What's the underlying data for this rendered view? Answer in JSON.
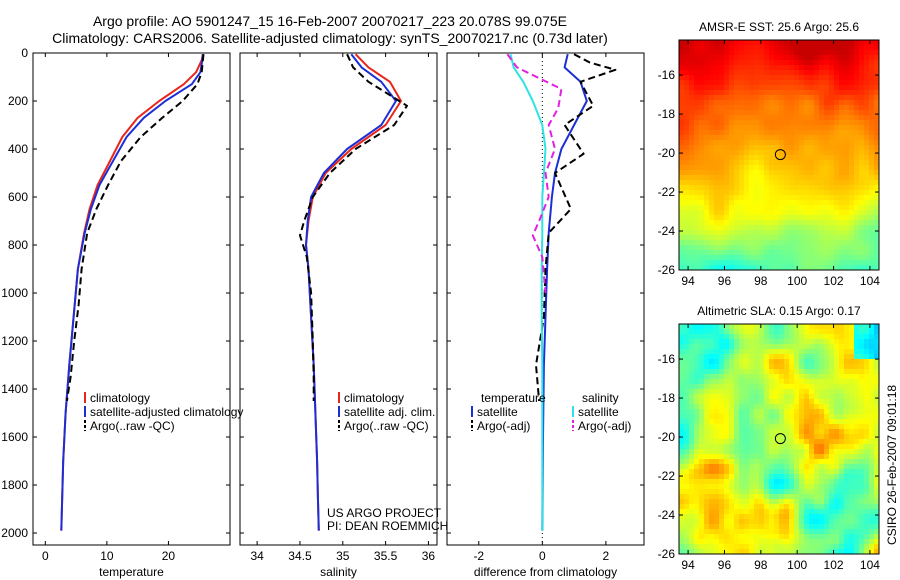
{
  "title_line1": "Argo profile: AO 5901247_15 16-Feb-2007 20070217_223 20.078S 99.075E",
  "title_line2": "Climatology: CARS2006. Satellite-adjusted climatology: synTS_20070217.nc (0.73d later)",
  "credit_project": "US ARGO PROJECT",
  "credit_pi": "PI: DEAN ROEMMICH",
  "timestamp": "CSIRO 26-Feb-2007 09:01:18",
  "colors": {
    "climatology": "#e8261c",
    "satellite": "#1c2fd6",
    "argo": "#000000",
    "sat_diff_salinity": "#2ee3e3",
    "argo_diff_salinity": "#e022e0"
  },
  "chart_data": [
    {
      "type": "line",
      "name": "temperature-profile",
      "xlabel": "temperature",
      "ylabel": "",
      "xlim": [
        -2,
        30
      ],
      "ylim": [
        2050,
        0
      ],
      "xticks": [
        0,
        10,
        20
      ],
      "yticks": [
        0,
        200,
        400,
        600,
        800,
        1000,
        1200,
        1400,
        1600,
        1800,
        2000
      ],
      "legend": [
        "climatology",
        "satellite-adjusted climatology",
        "Argo(..raw -QC)"
      ],
      "series": [
        {
          "name": "climatology",
          "style": "solid",
          "color": "#e8261c",
          "x": [
            25.6,
            25.4,
            24.5,
            22.5,
            18.5,
            15.0,
            12.5,
            10.5,
            8.5,
            7.2,
            6.3,
            5.3,
            4.6,
            3.9,
            3.3,
            2.9,
            2.6
          ],
          "y": [
            5,
            30,
            80,
            130,
            200,
            270,
            350,
            450,
            550,
            650,
            750,
            900,
            1100,
            1300,
            1500,
            1700,
            1990
          ]
        },
        {
          "name": "satellite-adjusted climatology",
          "style": "solid",
          "color": "#1c2fd6",
          "x": [
            25.6,
            25.5,
            25.2,
            23.8,
            19.5,
            16.0,
            13.2,
            11.0,
            8.8,
            7.4,
            6.4,
            5.3,
            4.6,
            3.9,
            3.3,
            2.9,
            2.6
          ],
          "y": [
            5,
            30,
            80,
            130,
            200,
            270,
            350,
            450,
            550,
            650,
            750,
            900,
            1100,
            1300,
            1500,
            1700,
            1990
          ]
        },
        {
          "name": "Argo(..raw -QC)",
          "style": "dashed",
          "color": "#000000",
          "x": [
            25.7,
            25.6,
            25.4,
            24.7,
            22.3,
            19.0,
            15.5,
            12.3,
            10.2,
            8.3,
            6.8,
            5.9,
            5.4,
            4.7,
            4.1,
            3.5
          ],
          "y": [
            5,
            30,
            80,
            130,
            200,
            270,
            350,
            450,
            550,
            650,
            750,
            900,
            1050,
            1200,
            1350,
            1450
          ]
        }
      ]
    },
    {
      "type": "line",
      "name": "salinity-profile",
      "xlabel": "salinity",
      "ylabel": "",
      "xlim": [
        33.8,
        36.1
      ],
      "ylim": [
        2050,
        0
      ],
      "xticks": [
        34,
        34.5,
        35,
        35.5,
        36
      ],
      "yticks": [],
      "legend": [
        "climatology",
        "satellite adj. clim.",
        "Argo(..raw -QC)"
      ],
      "series": [
        {
          "name": "climatology",
          "style": "solid",
          "color": "#e8261c",
          "x": [
            35.15,
            35.3,
            35.55,
            35.68,
            35.5,
            35.1,
            34.8,
            34.65,
            34.6,
            34.57,
            34.6,
            34.63,
            34.66,
            34.68,
            34.7,
            34.71,
            34.72
          ],
          "y": [
            5,
            60,
            120,
            200,
            300,
            400,
            500,
            600,
            700,
            800,
            900,
            1100,
            1300,
            1500,
            1700,
            1850,
            1990
          ]
        },
        {
          "name": "satellite adj. clim.",
          "style": "solid",
          "color": "#1c2fd6",
          "x": [
            35.1,
            35.22,
            35.45,
            35.62,
            35.45,
            35.05,
            34.78,
            34.63,
            34.59,
            34.57,
            34.6,
            34.63,
            34.66,
            34.68,
            34.7,
            34.71,
            34.72
          ],
          "y": [
            5,
            60,
            120,
            200,
            300,
            400,
            500,
            600,
            700,
            800,
            900,
            1100,
            1300,
            1500,
            1700,
            1850,
            1990
          ]
        },
        {
          "name": "Argo(..raw -QC)",
          "style": "dashed",
          "color": "#000000",
          "x": [
            35.05,
            35.12,
            35.3,
            35.75,
            35.6,
            35.15,
            34.85,
            34.65,
            34.55,
            34.5,
            34.58,
            34.63,
            34.65,
            34.66,
            34.66
          ],
          "y": [
            5,
            60,
            120,
            220,
            300,
            400,
            500,
            600,
            700,
            760,
            850,
            1000,
            1200,
            1350,
            1450
          ]
        }
      ]
    },
    {
      "type": "line",
      "name": "difference-from-climatology",
      "xlabel": "difference from climatology",
      "ylabel": "",
      "xlim": [
        -3,
        3.2
      ],
      "ylim": [
        2050,
        0
      ],
      "xticks": [
        -2,
        0,
        2
      ],
      "yticks": [],
      "legend_groups": [
        "temperature",
        "salinity"
      ],
      "legend": [
        "satellite",
        "Argo(-adj)",
        "satellite",
        "Argo(-adj)"
      ],
      "series": [
        {
          "name": "temperature satellite",
          "style": "solid",
          "color": "#1c2fd6",
          "x": [
            0.8,
            0.7,
            1.2,
            1.4,
            1.0,
            0.6,
            0.4,
            0.3,
            0.2,
            0.15,
            0.1,
            0.05,
            0.02,
            0.0
          ],
          "y": [
            5,
            60,
            120,
            200,
            300,
            400,
            500,
            600,
            750,
            900,
            1100,
            1300,
            1600,
            1990
          ]
        },
        {
          "name": "temperature Argo(-adj)",
          "style": "dashed",
          "color": "#000000",
          "x": [
            1.0,
            1.5,
            2.3,
            1.2,
            1.6,
            0.7,
            1.3,
            0.4,
            0.9,
            0.2,
            0.1,
            0.05,
            -0.2,
            -0.1
          ],
          "y": [
            5,
            40,
            70,
            120,
            220,
            300,
            420,
            500,
            650,
            750,
            900,
            1100,
            1300,
            1450
          ]
        },
        {
          "name": "salinity satellite",
          "style": "solid",
          "color": "#2ee3e3",
          "x": [
            -1.0,
            -0.9,
            -0.6,
            -0.3,
            0.0,
            0.1,
            0.05,
            0.0,
            0.0,
            -0.02,
            -0.02,
            0.0,
            0.0,
            0.0
          ],
          "y": [
            5,
            60,
            120,
            200,
            300,
            400,
            500,
            600,
            750,
            900,
            1100,
            1300,
            1600,
            1990
          ]
        },
        {
          "name": "salinity Argo(-adj)",
          "style": "dashed",
          "color": "#e022e0",
          "x": [
            -1.1,
            -0.8,
            0.6,
            0.5,
            0.2,
            0.4,
            0.1,
            0.2,
            -0.1,
            -0.3,
            0.0,
            0.1
          ],
          "y": [
            5,
            60,
            150,
            230,
            300,
            400,
            500,
            600,
            700,
            760,
            850,
            1000
          ]
        }
      ]
    },
    {
      "type": "heatmap",
      "name": "amsr-e-sst-map",
      "title": "AMSR-E SST: 25.6  Argo: 25.6",
      "xlim": [
        93.5,
        104.5
      ],
      "ylim": [
        -26,
        -14.2
      ],
      "xticks": [
        94,
        96,
        98,
        100,
        102,
        104
      ],
      "yticks": [
        -16,
        -18,
        -20,
        -22,
        -24,
        -26
      ],
      "marker": {
        "x": 99.075,
        "y": -20.078
      }
    },
    {
      "type": "heatmap",
      "name": "altimetric-sla-map",
      "title": "Altimetric SLA: 0.15  Argo: 0.17",
      "xlim": [
        93.5,
        104.5
      ],
      "ylim": [
        -26,
        -14.2
      ],
      "xticks": [
        94,
        96,
        98,
        100,
        102,
        104
      ],
      "yticks": [
        -16,
        -18,
        -20,
        -22,
        -24,
        -26
      ],
      "marker": {
        "x": 99.075,
        "y": -20.078
      }
    }
  ]
}
